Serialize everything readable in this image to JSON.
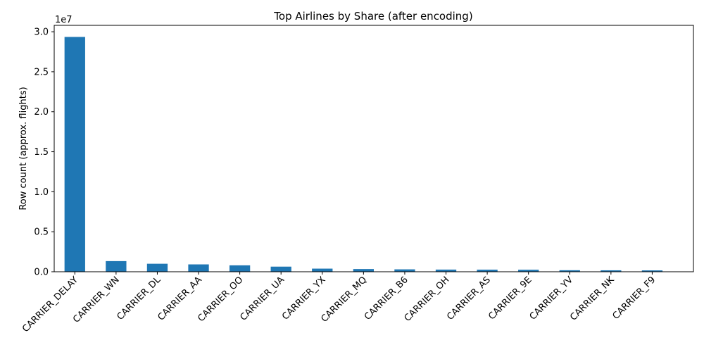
{
  "chart_data": {
    "type": "bar",
    "title": "Top Airlines by Share (after encoding)",
    "xlabel": "",
    "ylabel": "Row count (approx. flights)",
    "y_offset_label": "1e7",
    "ylim": [
      0,
      30800000
    ],
    "yticks": [
      0,
      5000000,
      10000000,
      15000000,
      20000000,
      25000000,
      30000000
    ],
    "ytick_labels": [
      "0.0",
      "0.5",
      "1.0",
      "1.5",
      "2.0",
      "2.5",
      "3.0"
    ],
    "grid": false,
    "bar_color": "#1f77b4",
    "categories": [
      "CARRIER_DELAY",
      "CARRIER_WN",
      "CARRIER_DL",
      "CARRIER_AA",
      "CARRIER_OO",
      "CARRIER_UA",
      "CARRIER_YX",
      "CARRIER_MQ",
      "CARRIER_B6",
      "CARRIER_OH",
      "CARRIER_AS",
      "CARRIER_9E",
      "CARRIER_YV",
      "CARRIER_NK",
      "CARRIER_F9"
    ],
    "values": [
      29350000,
      1330000,
      1000000,
      920000,
      800000,
      640000,
      390000,
      340000,
      300000,
      270000,
      260000,
      250000,
      190000,
      180000,
      170000
    ]
  }
}
